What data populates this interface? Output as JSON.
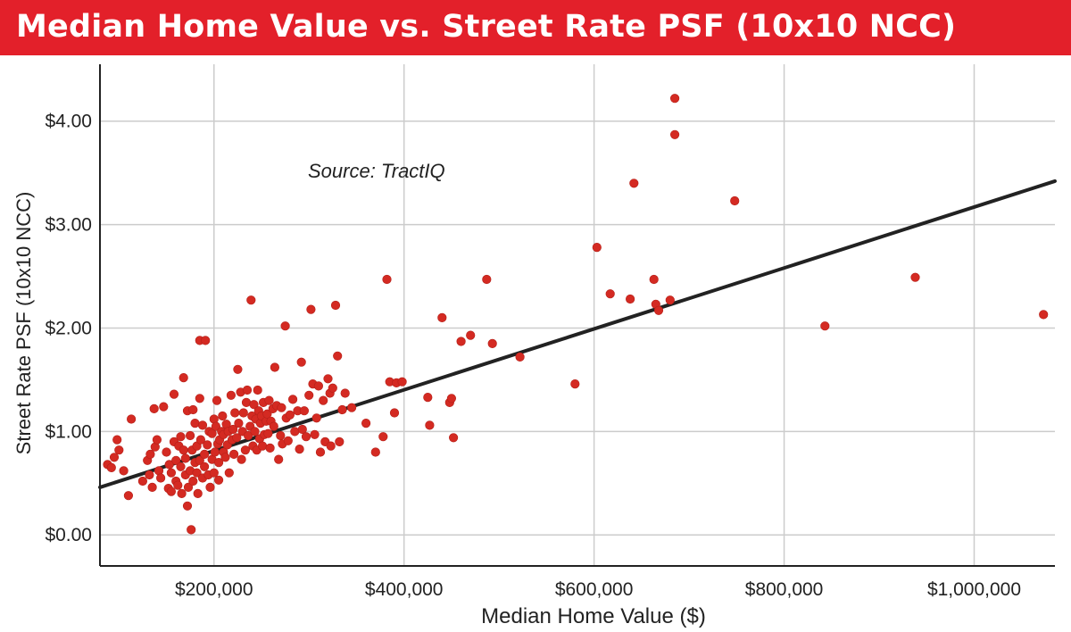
{
  "colors": {
    "banner": "#e3202a",
    "title_text": "#ffffff",
    "point": "#d42a22",
    "trendline": "#222222",
    "grid": "#cccccc",
    "axis": "#222222"
  },
  "chart_data": {
    "type": "scatter",
    "title": "Median Home Value vs. Street Rate PSF (10x10 NCC)",
    "annotation": "Source: TractIQ",
    "xlabel": "Median Home Value ($)",
    "ylabel": "Street Rate PSF (10x10 NCC)",
    "xlim": [
      80000,
      1085000
    ],
    "ylim": [
      -0.3,
      4.55
    ],
    "xticks": [
      {
        "value": 200000,
        "label": "$200,000"
      },
      {
        "value": 400000,
        "label": "$400,000"
      },
      {
        "value": 600000,
        "label": "$600,000"
      },
      {
        "value": 800000,
        "label": "$800,000"
      },
      {
        "value": 1000000,
        "label": "$1,000,000"
      }
    ],
    "yticks": [
      {
        "value": 0,
        "label": "$0.00"
      },
      {
        "value": 1,
        "label": "$1.00"
      },
      {
        "value": 2,
        "label": "$2.00"
      },
      {
        "value": 3,
        "label": "$3.00"
      },
      {
        "value": 4,
        "label": "$4.00"
      }
    ],
    "grid": true,
    "legend": "none",
    "trendline": {
      "x": [
        80000,
        1085000
      ],
      "y": [
        0.46,
        3.42
      ]
    },
    "series": [
      {
        "points": [
          [
            88000,
            0.68
          ],
          [
            92000,
            0.65
          ],
          [
            95000,
            0.75
          ],
          [
            98000,
            0.92
          ],
          [
            100000,
            0.82
          ],
          [
            105000,
            0.62
          ],
          [
            110000,
            0.38
          ],
          [
            113000,
            1.12
          ],
          [
            125000,
            0.52
          ],
          [
            130000,
            0.72
          ],
          [
            132000,
            0.58
          ],
          [
            133000,
            0.78
          ],
          [
            135000,
            0.46
          ],
          [
            137000,
            1.22
          ],
          [
            138000,
            0.85
          ],
          [
            140000,
            0.92
          ],
          [
            142000,
            0.62
          ],
          [
            144000,
            0.55
          ],
          [
            147000,
            1.24
          ],
          [
            150000,
            0.8
          ],
          [
            152000,
            0.45
          ],
          [
            153000,
            0.68
          ],
          [
            155000,
            0.42
          ],
          [
            155000,
            0.6
          ],
          [
            158000,
            1.36
          ],
          [
            158000,
            0.9
          ],
          [
            160000,
            0.52
          ],
          [
            160000,
            0.72
          ],
          [
            162000,
            0.48
          ],
          [
            163000,
            0.86
          ],
          [
            165000,
            0.66
          ],
          [
            165000,
            0.95
          ],
          [
            166000,
            0.4
          ],
          [
            168000,
            0.82
          ],
          [
            168000,
            1.52
          ],
          [
            170000,
            0.58
          ],
          [
            170000,
            0.74
          ],
          [
            172000,
            0.28
          ],
          [
            172000,
            1.2
          ],
          [
            173000,
            0.46
          ],
          [
            175000,
            0.96
          ],
          [
            175000,
            0.62
          ],
          [
            176000,
            0.05
          ],
          [
            177000,
            0.82
          ],
          [
            178000,
            0.52
          ],
          [
            178000,
            1.21
          ],
          [
            180000,
            0.7
          ],
          [
            180000,
            1.08
          ],
          [
            182000,
            0.6
          ],
          [
            182000,
            0.86
          ],
          [
            183000,
            0.4
          ],
          [
            185000,
            1.88
          ],
          [
            185000,
            0.72
          ],
          [
            185000,
            1.32
          ],
          [
            186000,
            0.92
          ],
          [
            188000,
            0.55
          ],
          [
            188000,
            1.06
          ],
          [
            190000,
            0.78
          ],
          [
            190000,
            0.66
          ],
          [
            191000,
            1.88
          ],
          [
            193000,
            0.87
          ],
          [
            194000,
            0.58
          ],
          [
            195000,
            1.0
          ],
          [
            196000,
            0.46
          ],
          [
            198000,
            0.73
          ],
          [
            198000,
            0.98
          ],
          [
            200000,
            0.6
          ],
          [
            200000,
            1.12
          ],
          [
            201000,
            0.8
          ],
          [
            202000,
            1.05
          ],
          [
            203000,
            1.3
          ],
          [
            204000,
            0.88
          ],
          [
            205000,
            0.7
          ],
          [
            205000,
            0.53
          ],
          [
            206000,
            0.92
          ],
          [
            208000,
            1.0
          ],
          [
            209000,
            1.15
          ],
          [
            210000,
            0.8
          ],
          [
            210000,
            0.97
          ],
          [
            212000,
            0.75
          ],
          [
            213000,
            1.07
          ],
          [
            214000,
            0.87
          ],
          [
            215000,
            1.0
          ],
          [
            216000,
            0.6
          ],
          [
            218000,
            1.35
          ],
          [
            219000,
            0.92
          ],
          [
            220000,
            1.02
          ],
          [
            221000,
            0.78
          ],
          [
            222000,
            1.18
          ],
          [
            224000,
            0.94
          ],
          [
            225000,
            1.6
          ],
          [
            226000,
            1.08
          ],
          [
            228000,
            1.38
          ],
          [
            229000,
            0.73
          ],
          [
            230000,
            1.0
          ],
          [
            231000,
            1.18
          ],
          [
            233000,
            0.82
          ],
          [
            234000,
            1.28
          ],
          [
            235000,
            1.4
          ],
          [
            236000,
            0.96
          ],
          [
            238000,
            1.05
          ],
          [
            239000,
            2.27
          ],
          [
            240000,
            1.15
          ],
          [
            241000,
            0.86
          ],
          [
            242000,
            1.26
          ],
          [
            243000,
            1.0
          ],
          [
            244000,
            1.12
          ],
          [
            245000,
            0.82
          ],
          [
            246000,
            1.4
          ],
          [
            247000,
            1.2
          ],
          [
            248000,
            0.93
          ],
          [
            249000,
            1.08
          ],
          [
            250000,
            1.15
          ],
          [
            251000,
            0.86
          ],
          [
            252000,
            1.28
          ],
          [
            253000,
            0.97
          ],
          [
            255000,
            1.1
          ],
          [
            256000,
            1.17
          ],
          [
            257000,
            0.98
          ],
          [
            258000,
            1.3
          ],
          [
            259000,
            0.84
          ],
          [
            260000,
            1.1
          ],
          [
            262000,
            1.22
          ],
          [
            263000,
            1.05
          ],
          [
            264000,
            1.62
          ],
          [
            266000,
            1.25
          ],
          [
            268000,
            0.73
          ],
          [
            270000,
            0.96
          ],
          [
            271000,
            1.23
          ],
          [
            272000,
            0.88
          ],
          [
            275000,
            2.02
          ],
          [
            276000,
            1.13
          ],
          [
            278000,
            0.91
          ],
          [
            280000,
            1.16
          ],
          [
            283000,
            1.31
          ],
          [
            285000,
            1.0
          ],
          [
            288000,
            1.2
          ],
          [
            290000,
            0.83
          ],
          [
            292000,
            1.67
          ],
          [
            293000,
            1.02
          ],
          [
            295000,
            1.2
          ],
          [
            297000,
            0.95
          ],
          [
            300000,
            1.35
          ],
          [
            302000,
            2.18
          ],
          [
            304000,
            1.46
          ],
          [
            306000,
            0.97
          ],
          [
            308000,
            1.13
          ],
          [
            310000,
            1.44
          ],
          [
            312000,
            0.8
          ],
          [
            315000,
            1.3
          ],
          [
            317000,
            0.9
          ],
          [
            320000,
            1.51
          ],
          [
            322000,
            1.37
          ],
          [
            323000,
            0.86
          ],
          [
            325000,
            1.42
          ],
          [
            328000,
            2.22
          ],
          [
            330000,
            1.73
          ],
          [
            332000,
            0.9
          ],
          [
            335000,
            1.21
          ],
          [
            338000,
            1.37
          ],
          [
            345000,
            1.23
          ],
          [
            360000,
            1.08
          ],
          [
            370000,
            0.8
          ],
          [
            378000,
            0.95
          ],
          [
            382000,
            2.47
          ],
          [
            385000,
            1.48
          ],
          [
            390000,
            1.18
          ],
          [
            392000,
            1.47
          ],
          [
            398000,
            1.48
          ],
          [
            425000,
            1.33
          ],
          [
            427000,
            1.06
          ],
          [
            440000,
            2.1
          ],
          [
            448000,
            1.28
          ],
          [
            450000,
            1.32
          ],
          [
            452000,
            0.94
          ],
          [
            460000,
            1.87
          ],
          [
            470000,
            1.93
          ],
          [
            487000,
            2.47
          ],
          [
            493000,
            1.85
          ],
          [
            522000,
            1.72
          ],
          [
            580000,
            1.46
          ],
          [
            603000,
            2.78
          ],
          [
            617000,
            2.33
          ],
          [
            638000,
            2.28
          ],
          [
            642000,
            3.4
          ],
          [
            663000,
            2.47
          ],
          [
            665000,
            2.23
          ],
          [
            668000,
            2.17
          ],
          [
            680000,
            2.27
          ],
          [
            685000,
            4.22
          ],
          [
            685000,
            3.87
          ],
          [
            748000,
            3.23
          ],
          [
            843000,
            2.02
          ],
          [
            938000,
            2.49
          ],
          [
            1073000,
            2.13
          ]
        ]
      }
    ]
  }
}
